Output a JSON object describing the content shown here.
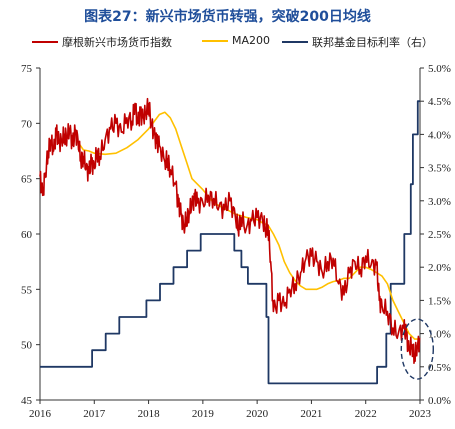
{
  "title": "图表27：新兴市场货币转强，突破200日均线",
  "legend": [
    {
      "label": "摩根新兴市场货币指数",
      "color": "#c00000"
    },
    {
      "label": "MA200",
      "color": "#ffc000"
    },
    {
      "label": "联邦基金目标利率（右）",
      "color": "#1f3864"
    }
  ],
  "colors": {
    "index": "#c00000",
    "ma200": "#ffc000",
    "rate": "#1f3864",
    "annotation": "#1f3864"
  },
  "chart_data": {
    "type": "line",
    "title": "图表27：新兴市场货币转强，突破200日均线",
    "x_range": [
      2016,
      2023
    ],
    "x_ticks": [
      "2016",
      "2017",
      "2018",
      "2019",
      "2020",
      "2021",
      "2022",
      "2023"
    ],
    "y_left": {
      "range": [
        45,
        75
      ],
      "ticks": [
        "45",
        "50",
        "55",
        "60",
        "65",
        "70",
        "75"
      ]
    },
    "y_right": {
      "range": [
        0,
        5
      ],
      "ticks": [
        "0.0%",
        "0.5%",
        "1.0%",
        "1.5%",
        "2.0%",
        "2.5%",
        "3.0%",
        "3.5%",
        "4.0%",
        "4.5%",
        "5.0%"
      ]
    },
    "grid": false,
    "legend_position": "top",
    "annotation": "dashed ellipse around late 2022 – early 2023",
    "series": [
      {
        "name": "摩根新兴市场货币指数",
        "axis": "left",
        "x": [
          2016.0,
          2016.05,
          2016.1,
          2016.15,
          2016.2,
          2016.25,
          2016.3,
          2016.35,
          2016.4,
          2016.45,
          2016.5,
          2016.55,
          2016.6,
          2016.65,
          2016.7,
          2016.75,
          2016.8,
          2016.85,
          2016.9,
          2016.95,
          2017.0,
          2017.05,
          2017.1,
          2017.2,
          2017.3,
          2017.4,
          2017.5,
          2017.6,
          2017.7,
          2017.75,
          2017.8,
          2017.85,
          2017.9,
          2017.95,
          2018.0,
          2018.05,
          2018.1,
          2018.15,
          2018.2,
          2018.3,
          2018.35,
          2018.4,
          2018.5,
          2018.55,
          2018.6,
          2018.65,
          2018.7,
          2018.75,
          2018.8,
          2018.85,
          2018.9,
          2019.0,
          2019.1,
          2019.2,
          2019.3,
          2019.4,
          2019.5,
          2019.6,
          2019.65,
          2019.7,
          2019.8,
          2019.9,
          2020.0,
          2020.1,
          2020.15,
          2020.2,
          2020.25,
          2020.3,
          2020.4,
          2020.5,
          2020.6,
          2020.7,
          2020.8,
          2020.9,
          2021.0,
          2021.1,
          2021.2,
          2021.3,
          2021.4,
          2021.5,
          2021.6,
          2021.7,
          2021.8,
          2021.9,
          2022.0,
          2022.1,
          2022.2,
          2022.25,
          2022.3,
          2022.4,
          2022.5,
          2022.6,
          2022.7,
          2022.75,
          2022.8,
          2022.85,
          2022.9,
          2022.95,
          2023.0
        ],
        "values": [
          65.2,
          63.5,
          65.5,
          67.5,
          68.5,
          67.5,
          69.2,
          68.2,
          68.5,
          69.0,
          68.8,
          69.5,
          68.0,
          69.2,
          68.5,
          66.8,
          67.0,
          66.0,
          65.5,
          66.5,
          66.0,
          67.5,
          67.0,
          68.5,
          69.5,
          70.0,
          69.2,
          70.5,
          70.2,
          71.8,
          70.0,
          70.8,
          70.5,
          71.0,
          71.8,
          70.0,
          69.0,
          68.2,
          68.0,
          66.5,
          66.8,
          65.8,
          64.5,
          62.5,
          61.8,
          60.5,
          61.5,
          62.0,
          62.8,
          63.2,
          62.8,
          62.8,
          63.5,
          63.2,
          62.5,
          62.2,
          63.0,
          61.5,
          60.5,
          61.5,
          60.5,
          61.2,
          61.5,
          61.2,
          60.5,
          60.8,
          57.5,
          53.0,
          54.0,
          53.5,
          55.0,
          55.5,
          56.5,
          57.8,
          58.0,
          57.5,
          56.5,
          57.5,
          57.8,
          55.5,
          54.5,
          56.5,
          57.5,
          56.8,
          58.0,
          57.2,
          57.2,
          54.0,
          53.5,
          53.0,
          51.5,
          51.0,
          51.5,
          50.8,
          49.5,
          50.0,
          49.0,
          49.8,
          50.5
        ]
      },
      {
        "name": "MA200",
        "axis": "left",
        "x": [
          2016.7,
          2016.8,
          2016.9,
          2017.0,
          2017.2,
          2017.4,
          2017.6,
          2017.8,
          2018.0,
          2018.2,
          2018.3,
          2018.4,
          2018.5,
          2018.6,
          2018.7,
          2018.8,
          2019.0,
          2019.2,
          2019.4,
          2019.6,
          2019.8,
          2020.0,
          2020.1,
          2020.2,
          2020.3,
          2020.4,
          2020.5,
          2020.6,
          2020.7,
          2020.8,
          2020.9,
          2021.0,
          2021.1,
          2021.2,
          2021.3,
          2021.4,
          2021.5,
          2021.6,
          2021.7,
          2021.8,
          2021.9,
          2022.0,
          2022.1,
          2022.2,
          2022.3,
          2022.4,
          2022.5,
          2022.6,
          2022.7,
          2022.8,
          2022.9,
          2023.0
        ],
        "values": [
          68.3,
          67.6,
          67.5,
          67.3,
          67.2,
          67.3,
          67.8,
          68.5,
          69.5,
          70.8,
          71.0,
          70.5,
          69.5,
          68.0,
          66.5,
          65.0,
          64.0,
          62.8,
          62.3,
          61.8,
          61.5,
          61.3,
          61.0,
          60.8,
          60.0,
          59.0,
          57.5,
          56.5,
          55.8,
          55.3,
          55.0,
          55.0,
          55.0,
          55.2,
          55.5,
          55.7,
          55.8,
          56.0,
          56.0,
          56.5,
          57.0,
          57.0,
          56.8,
          56.5,
          56.2,
          55.5,
          54.0,
          53.0,
          52.0,
          51.0,
          50.5,
          50.5
        ]
      },
      {
        "name": "联邦基金目标利率（右）",
        "axis": "right",
        "x": [
          2016.0,
          2016.96,
          2016.96,
          2017.21,
          2017.21,
          2017.46,
          2017.46,
          2017.96,
          2017.96,
          2018.21,
          2018.21,
          2018.46,
          2018.46,
          2018.71,
          2018.71,
          2018.96,
          2018.96,
          2019.58,
          2019.58,
          2019.71,
          2019.71,
          2019.83,
          2019.83,
          2020.17,
          2020.17,
          2020.21,
          2020.21,
          2022.21,
          2022.21,
          2022.38,
          2022.38,
          2022.46,
          2022.46,
          2022.71,
          2022.71,
          2022.83,
          2022.83,
          2022.87,
          2022.87,
          2022.96,
          2022.96,
          2023.0
        ],
        "values": [
          0.5,
          0.5,
          0.75,
          0.75,
          1.0,
          1.0,
          1.25,
          1.25,
          1.5,
          1.5,
          1.75,
          1.75,
          2.0,
          2.0,
          2.25,
          2.25,
          2.5,
          2.5,
          2.25,
          2.25,
          2.0,
          2.0,
          1.75,
          1.75,
          1.25,
          1.25,
          0.25,
          0.25,
          0.5,
          0.5,
          1.0,
          1.0,
          1.75,
          1.75,
          2.5,
          2.5,
          3.25,
          3.25,
          4.0,
          4.0,
          4.5,
          4.5
        ]
      }
    ]
  }
}
